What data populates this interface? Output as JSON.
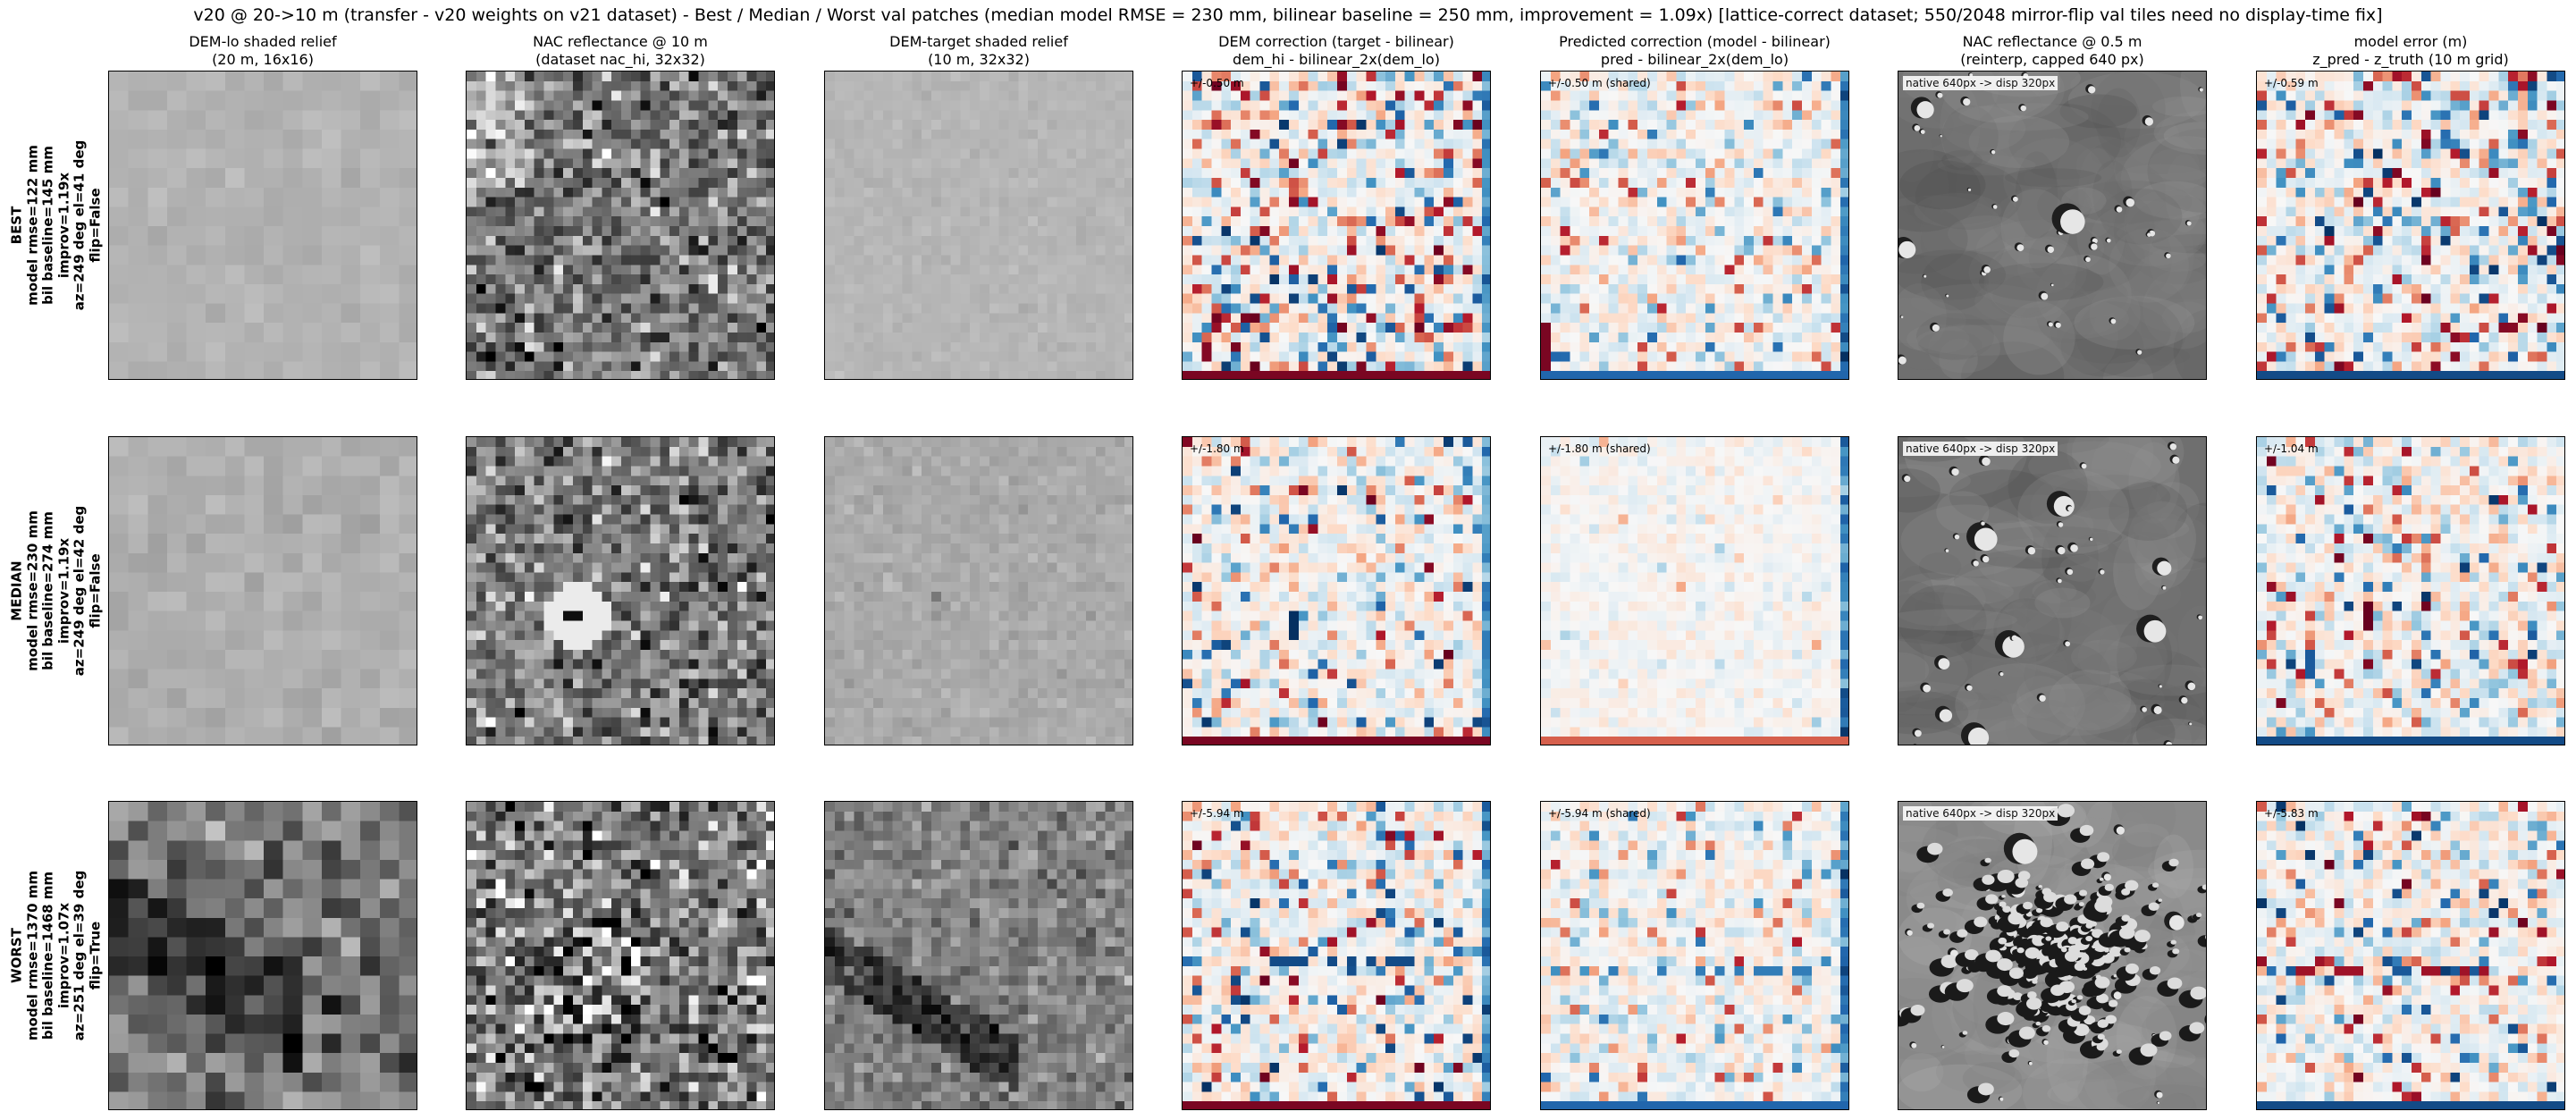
{
  "suptitle": "v20 @ 20->10 m (transfer - v20 weights on v21 dataset) - Best / Median / Worst val patches  (median model RMSE = 230 mm, bilinear baseline = 250 mm, improvement = 1.09x)  [lattice-correct dataset; 550/2048 mirror-flip val tiles need no display-time fix]",
  "columns": [
    {
      "key": "dem_lo",
      "title_line1": "DEM-lo shaded relief",
      "title_line2": "(20 m, 16x16)",
      "grid": 16,
      "colormap": "gray"
    },
    {
      "key": "nac_hi",
      "title_line1": "NAC reflectance @ 10 m",
      "title_line2": "(dataset nac_hi, 32x32)",
      "grid": 32,
      "colormap": "gray"
    },
    {
      "key": "dem_target",
      "title_line1": "DEM-target shaded relief",
      "title_line2": "(10 m, 32x32)",
      "grid": 32,
      "colormap": "gray"
    },
    {
      "key": "dem_correction",
      "title_line1": "DEM correction (target - bilinear)",
      "title_line2": "dem_hi - bilinear_2x(dem_lo)",
      "grid": 32,
      "colormap": "RdBu_r"
    },
    {
      "key": "pred_correction",
      "title_line1": "Predicted correction (model - bilinear)",
      "title_line2": "pred - bilinear_2x(dem_lo)",
      "grid": 32,
      "colormap": "RdBu_r"
    },
    {
      "key": "nac_native",
      "title_line1": "NAC reflectance @ 0.5 m",
      "title_line2": "(reinterp, capped 640 px)",
      "grid": 0,
      "colormap": "gray"
    },
    {
      "key": "model_error",
      "title_line1": "model error (m)",
      "title_line2": "z_pred - z_truth (10 m grid)",
      "grid": 32,
      "colormap": "RdBu_r"
    }
  ],
  "rows": [
    {
      "key": "best",
      "label": "BEST",
      "line1": "model rmse=122 mm",
      "line2": "bil baseline=145 mm",
      "line3": "improv=1.19x",
      "line4": "az=249 deg el=41 deg",
      "line5": "flip=False",
      "annot_corr": "+/-0.50 m",
      "annot_pred": "+/-0.50 m (shared)",
      "annot_nac": "native 640px -> disp 320px",
      "annot_err": "+/-0.59 m"
    },
    {
      "key": "median",
      "label": "MEDIAN",
      "line1": "model rmse=230 mm",
      "line2": "bil baseline=274 mm",
      "line3": "improv=1.19x",
      "line4": "az=249 deg el=42 deg",
      "line5": "flip=False",
      "annot_corr": "+/-1.80 m",
      "annot_pred": "+/-1.80 m (shared)",
      "annot_nac": "native 640px -> disp 320px",
      "annot_err": "+/-1.04 m"
    },
    {
      "key": "worst",
      "label": "WORST",
      "line1": "model rmse=1370 mm",
      "line2": "bil baseline=1468 mm",
      "line3": "improv=1.07x",
      "line4": "az=251 deg el=39 deg",
      "line5": "flip=True",
      "annot_corr": "+/-5.94 m",
      "annot_pred": "+/-5.94 m (shared)",
      "annot_nac": "native 640px -> disp 320px",
      "annot_err": "+/-5.83 m"
    }
  ],
  "chart_data": {
    "type": "heatmap",
    "layout": "3 rows x 7 columns of image panels",
    "row_labels": [
      "BEST",
      "MEDIAN",
      "WORST"
    ],
    "metrics": [
      {
        "row": "BEST",
        "model_rmse_mm": 122,
        "bilinear_baseline_mm": 145,
        "improvement": 1.19,
        "az_deg": 249,
        "el_deg": 41,
        "flip": false,
        "corr_range_m": 0.5,
        "err_range_m": 0.59
      },
      {
        "row": "MEDIAN",
        "model_rmse_mm": 230,
        "bilinear_baseline_mm": 274,
        "improvement": 1.19,
        "az_deg": 249,
        "el_deg": 42,
        "flip": false,
        "corr_range_m": 1.8,
        "err_range_m": 1.04
      },
      {
        "row": "WORST",
        "model_rmse_mm": 1370,
        "bilinear_baseline_mm": 1468,
        "improvement": 1.07,
        "az_deg": 251,
        "el_deg": 39,
        "flip": true,
        "corr_range_m": 5.94,
        "err_range_m": 5.83
      }
    ],
    "summary": {
      "median_model_rmse_mm": 230,
      "bilinear_baseline_mm": 250,
      "improvement": 1.09
    },
    "colormaps": {
      "relief": "gray",
      "correction": "RdBu_r"
    },
    "axes_ticks": "none",
    "colors": {
      "red_dark": "#67001f",
      "red": "#d6604d",
      "white": "#f7f7f7",
      "blue": "#4393c3",
      "blue_dark": "#053061"
    }
  }
}
